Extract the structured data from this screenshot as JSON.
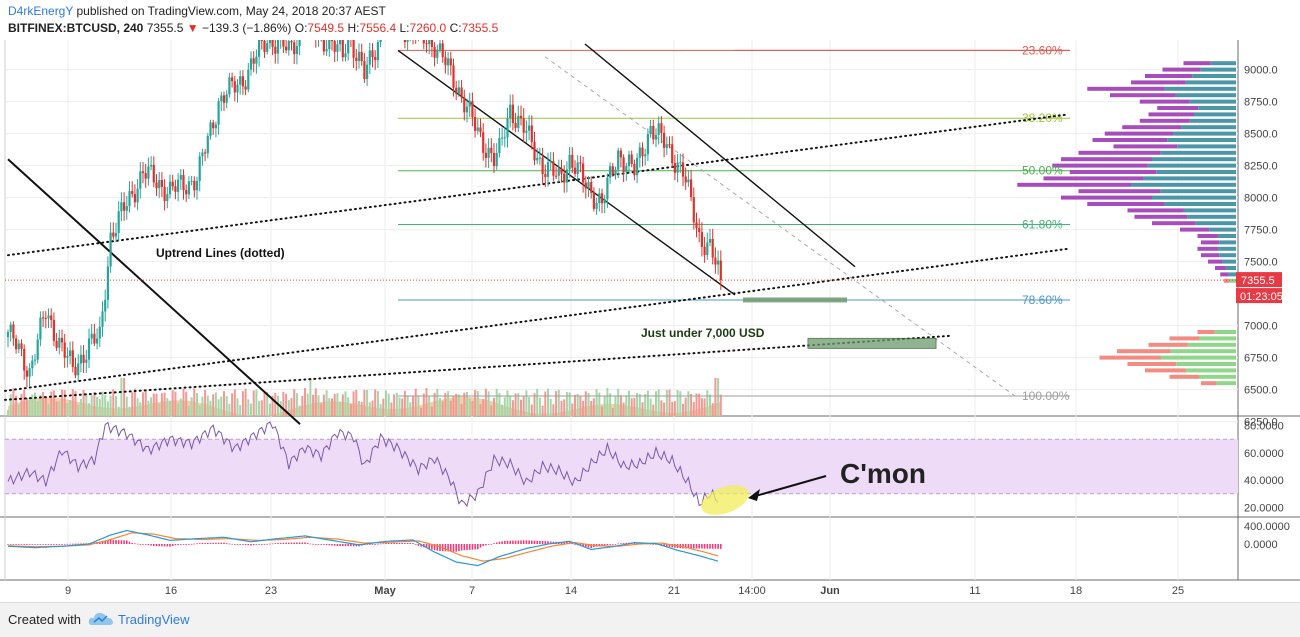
{
  "header": {
    "author": "D4rkEnergY",
    "published_text": "published on TradingView.com, May 24, 2018 20:37 AEST",
    "symbol": "BITFINEX:BTCUSD, 240",
    "last": "7355.5",
    "down_glyph": "▼",
    "change": "−139.3 (−1.86%)",
    "o_label": "O:",
    "o_value": "7549.5",
    "h_label": "H:",
    "h_value": "7556.4",
    "l_label": "L:",
    "l_value": "7260.0",
    "c_label": "C:",
    "c_value": "7355.5"
  },
  "footer": {
    "created_with": "Created with",
    "brand": "TradingView"
  },
  "chart_data": [
    {
      "type": "candlestick",
      "title": "",
      "xlabel": "",
      "ylabel": "",
      "x_tick_labels": [
        "9",
        "16",
        "23",
        "May",
        "7",
        "14",
        "21",
        "14:00",
        "Jun",
        "11",
        "18",
        "25"
      ],
      "y_tick_labels": [
        "9000.0",
        "8750.0",
        "8500.0",
        "8250.0",
        "8000.0",
        "7750.0",
        "7500.0",
        "6750.0",
        "6500.0",
        "6250.0"
      ],
      "y_tick_values": [
        9000,
        8750,
        8500,
        8250,
        8000,
        7750,
        7500,
        6750,
        6500,
        6250
      ],
      "y_tick_7000": "7000.0",
      "ylim": [
        6200,
        9200
      ],
      "grid": true,
      "last_price_label": "7355.5",
      "countdown_label": "01:23:05",
      "ohlc_anchor_path": [
        [
          0,
          6950
        ],
        [
          8,
          6650
        ],
        [
          14,
          7100
        ],
        [
          24,
          6650
        ],
        [
          30,
          6850
        ],
        [
          34,
          6900
        ],
        [
          38,
          7700
        ],
        [
          50,
          8200
        ],
        [
          60,
          8050
        ],
        [
          70,
          8150
        ],
        [
          78,
          8750
        ],
        [
          88,
          8950
        ],
        [
          96,
          9250
        ],
        [
          104,
          9150
        ],
        [
          110,
          9350
        ],
        [
          120,
          9200
        ],
        [
          124,
          9100
        ],
        [
          126,
          9300
        ],
        [
          132,
          8950
        ],
        [
          140,
          9400
        ],
        [
          150,
          9300
        ],
        [
          158,
          9200
        ],
        [
          162,
          9050
        ],
        [
          168,
          8800
        ],
        [
          174,
          8500
        ],
        [
          180,
          8300
        ],
        [
          182,
          8350
        ],
        [
          186,
          8700
        ],
        [
          192,
          8500
        ],
        [
          198,
          8250
        ],
        [
          204,
          8150
        ],
        [
          208,
          8300
        ],
        [
          214,
          8100
        ],
        [
          220,
          7950
        ],
        [
          226,
          8350
        ],
        [
          232,
          8200
        ],
        [
          238,
          8550
        ],
        [
          244,
          8400
        ],
        [
          250,
          8200
        ],
        [
          256,
          7700
        ],
        [
          260,
          7600
        ],
        [
          264,
          7355.5
        ]
      ],
      "fibonacci": [
        {
          "label": "23.60%",
          "price": 9150,
          "color": "#e05a4f"
        },
        {
          "label": "38.20%",
          "price": 8620,
          "color": "#9bc53d"
        },
        {
          "label": "50.00%",
          "price": 8210,
          "color": "#4caf50"
        },
        {
          "label": "61.80%",
          "price": 7790,
          "color": "#43b37a"
        },
        {
          "label": "78.60%",
          "price": 7200,
          "color": "#4a98c9"
        },
        {
          "label": "100.00%",
          "price": 6450,
          "color": "#9e9e9e"
        }
      ],
      "annotations": [
        "Uptrend Lines (dotted)",
        "Just under 7,000 USD"
      ],
      "volume_profile_prices": [
        9050,
        9000,
        8950,
        8900,
        8850,
        8800,
        8750,
        8700,
        8650,
        8600,
        8550,
        8500,
        8450,
        8400,
        8350,
        8300,
        8250,
        8200,
        8150,
        8100,
        8050,
        8000,
        7950,
        7900,
        7850,
        7800,
        7750,
        7700,
        7650,
        7600,
        7550,
        7500,
        7450,
        7400,
        7350,
        6950,
        6900,
        6850,
        6800,
        6750,
        6700,
        6650,
        6600,
        6550
      ],
      "volume_profile_values": [
        0.3,
        0.42,
        0.52,
        0.6,
        0.85,
        0.72,
        0.55,
        0.45,
        0.5,
        0.55,
        0.65,
        0.75,
        0.82,
        0.7,
        0.9,
        1.0,
        1.05,
        0.95,
        1.1,
        1.25,
        0.9,
        1.0,
        0.85,
        0.62,
        0.58,
        0.48,
        0.32,
        0.22,
        0.2,
        0.22,
        0.2,
        0.16,
        0.12,
        0.09,
        0.07,
        0.22,
        0.38,
        0.5,
        0.68,
        0.78,
        0.62,
        0.52,
        0.38,
        0.2
      ]
    },
    {
      "type": "line",
      "title": "",
      "y_tick_labels": [
        "80.0000",
        "60.0000",
        "40.0000",
        "20.0000"
      ],
      "y_tick_values": [
        80,
        60,
        40,
        20
      ],
      "ylim": [
        13,
        87
      ],
      "band": [
        30,
        70
      ],
      "rsi_path": [
        [
          0,
          39
        ],
        [
          8,
          46
        ],
        [
          14,
          39
        ],
        [
          20,
          62
        ],
        [
          26,
          50
        ],
        [
          32,
          55
        ],
        [
          36,
          80
        ],
        [
          44,
          74
        ],
        [
          52,
          62
        ],
        [
          60,
          70
        ],
        [
          68,
          67
        ],
        [
          76,
          78
        ],
        [
          84,
          63
        ],
        [
          92,
          74
        ],
        [
          98,
          82
        ],
        [
          104,
          52
        ],
        [
          110,
          64
        ],
        [
          116,
          58
        ],
        [
          122,
          75
        ],
        [
          128,
          72
        ],
        [
          132,
          50
        ],
        [
          138,
          71
        ],
        [
          144,
          64
        ],
        [
          152,
          48
        ],
        [
          158,
          56
        ],
        [
          164,
          40
        ],
        [
          168,
          22
        ],
        [
          174,
          30
        ],
        [
          180,
          55
        ],
        [
          186,
          52
        ],
        [
          192,
          38
        ],
        [
          198,
          50
        ],
        [
          204,
          47
        ],
        [
          210,
          38
        ],
        [
          216,
          52
        ],
        [
          222,
          63
        ],
        [
          228,
          50
        ],
        [
          234,
          52
        ],
        [
          240,
          60
        ],
        [
          246,
          54
        ],
        [
          252,
          38
        ],
        [
          256,
          23
        ],
        [
          260,
          30
        ],
        [
          264,
          25
        ]
      ],
      "callout": "C'mon"
    },
    {
      "type": "line",
      "title": "",
      "y_tick_labels": [
        "400.0000",
        "0.0000"
      ],
      "y_tick_values": [
        400,
        0
      ],
      "ylim": [
        -800,
        600
      ],
      "macd_path": [
        [
          0,
          -50
        ],
        [
          10,
          -80
        ],
        [
          20,
          -50
        ],
        [
          30,
          0
        ],
        [
          38,
          200
        ],
        [
          44,
          300
        ],
        [
          52,
          200
        ],
        [
          60,
          80
        ],
        [
          70,
          120
        ],
        [
          80,
          150
        ],
        [
          90,
          50
        ],
        [
          100,
          120
        ],
        [
          110,
          180
        ],
        [
          120,
          80
        ],
        [
          130,
          -20
        ],
        [
          140,
          60
        ],
        [
          150,
          90
        ],
        [
          158,
          -180
        ],
        [
          166,
          -400
        ],
        [
          174,
          -480
        ],
        [
          182,
          -280
        ],
        [
          192,
          -100
        ],
        [
          200,
          0
        ],
        [
          208,
          60
        ],
        [
          216,
          -120
        ],
        [
          224,
          -60
        ],
        [
          232,
          30
        ],
        [
          240,
          10
        ],
        [
          248,
          -140
        ],
        [
          256,
          -260
        ],
        [
          264,
          -400
        ]
      ],
      "signal_path": [
        [
          0,
          -40
        ],
        [
          10,
          -60
        ],
        [
          20,
          -50
        ],
        [
          30,
          -20
        ],
        [
          38,
          100
        ],
        [
          46,
          250
        ],
        [
          54,
          220
        ],
        [
          62,
          120
        ],
        [
          72,
          100
        ],
        [
          82,
          120
        ],
        [
          92,
          80
        ],
        [
          102,
          100
        ],
        [
          112,
          150
        ],
        [
          122,
          110
        ],
        [
          132,
          20
        ],
        [
          142,
          40
        ],
        [
          152,
          70
        ],
        [
          160,
          -60
        ],
        [
          168,
          -260
        ],
        [
          176,
          -380
        ],
        [
          184,
          -320
        ],
        [
          194,
          -160
        ],
        [
          202,
          -40
        ],
        [
          210,
          30
        ],
        [
          218,
          -40
        ],
        [
          226,
          -50
        ],
        [
          234,
          0
        ],
        [
          242,
          20
        ],
        [
          250,
          -60
        ],
        [
          258,
          -180
        ],
        [
          264,
          -280
        ]
      ]
    }
  ],
  "colors": {
    "up": "#26a69a",
    "down": "#e0312b",
    "up_vol": "#a5d6a7",
    "down_vol": "#f19a94",
    "volume_area": "#f2c79b",
    "vp_upper_left": "#a64dbb",
    "vp_upper_right": "#4c97a7",
    "vp_lower_left": "#f28b82",
    "vp_lower_right": "#8fd68b",
    "rsi_line": "#7b5aa8",
    "rsi_band": "#eedbf7",
    "macd_line": "#2a98d8",
    "signal_line": "#f58634",
    "hist": "#ef3d7a",
    "price_badge": "#e73a44",
    "channel_fill": "#6e9a6e",
    "ellipse": "#f2ee5a"
  }
}
